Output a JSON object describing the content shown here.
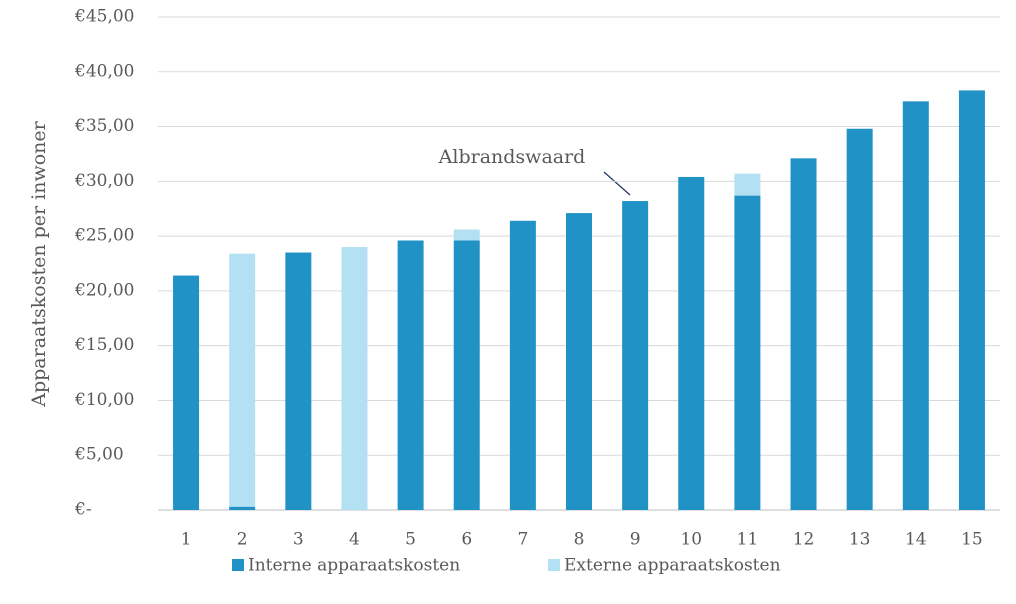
{
  "chart_data": {
    "type": "stacked_bar",
    "y_label": "Apparaatskosten per inwoner",
    "categories": [
      "1",
      "2",
      "3",
      "4",
      "5",
      "6",
      "7",
      "8",
      "9",
      "10",
      "11",
      "12",
      "13",
      "14",
      "15"
    ],
    "series": [
      {
        "name": "Interne apparaatskosten",
        "color": "#2092c5",
        "values": [
          21.4,
          0.3,
          23.5,
          0,
          24.6,
          24.6,
          26.4,
          27.1,
          28.2,
          30.4,
          28.7,
          32.1,
          34.8,
          37.3,
          38.3
        ]
      },
      {
        "name": "Externe apparaatskosten",
        "color": "#b3e0f2",
        "values": [
          0,
          23.1,
          0,
          24.0,
          0,
          1.0,
          0,
          0,
          0,
          0,
          2.0,
          0,
          0,
          0,
          0
        ]
      }
    ],
    "ylim": [
      0,
      45
    ],
    "yticks": [
      {
        "value": 0,
        "label": "€-"
      },
      {
        "value": 5,
        "label": "€5,00"
      },
      {
        "value": 10,
        "label": "€10,00"
      },
      {
        "value": 15,
        "label": "€15,00"
      },
      {
        "value": 20,
        "label": "€20,00"
      },
      {
        "value": 25,
        "label": "€25,00"
      },
      {
        "value": 30,
        "label": "€30,00"
      },
      {
        "value": 35,
        "label": "€35,00"
      },
      {
        "value": 40,
        "label": "€40,00"
      },
      {
        "value": 45,
        "label": "€45,00"
      }
    ],
    "grid": true,
    "legend": "bottom",
    "annotation": "Albrandswaard"
  }
}
